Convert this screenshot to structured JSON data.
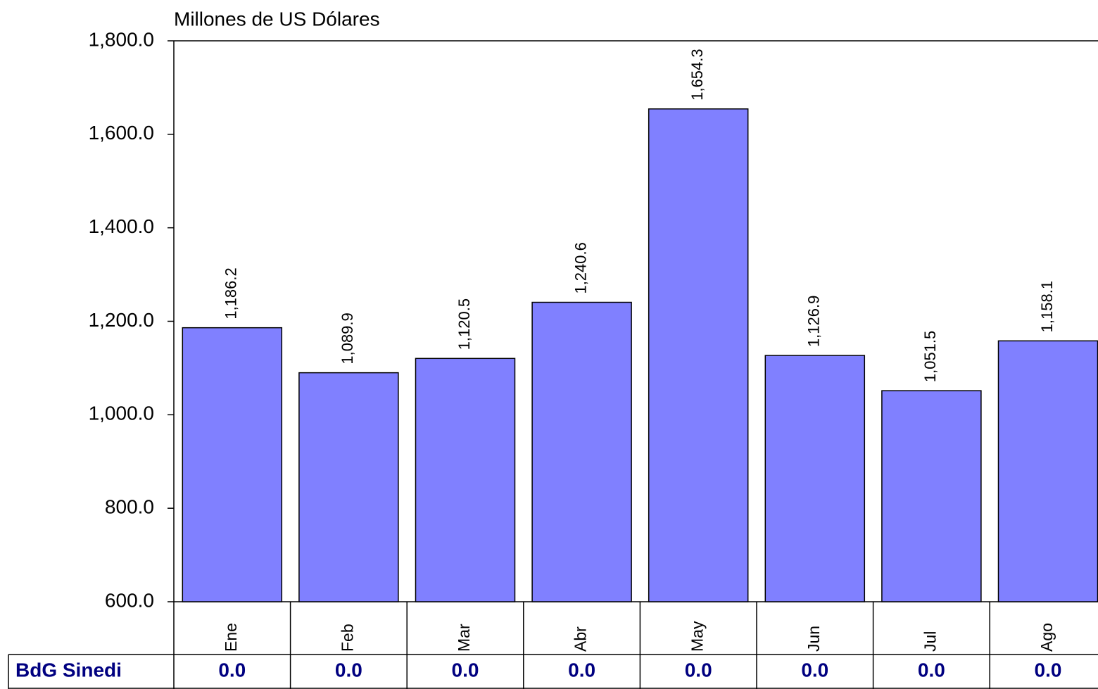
{
  "chart_data": {
    "type": "bar",
    "y_label": "Millones de US Dólares",
    "categories": [
      "Ene",
      "Feb",
      "Mar",
      "Abr",
      "May",
      "Jun",
      "Jul",
      "Ago"
    ],
    "values": [
      1186.2,
      1089.9,
      1120.5,
      1240.6,
      1654.3,
      1126.9,
      1051.5,
      1158.1
    ],
    "value_labels": [
      "1,186.2",
      "1,089.9",
      "1,120.5",
      "1,240.6",
      "1,654.3",
      "1,126.9",
      "1,051.5",
      "1,158.1"
    ],
    "color": "#8080ff",
    "ylim": [
      600,
      1800
    ],
    "yticks": [
      {
        "value": 600,
        "label": "600.0"
      },
      {
        "value": 800,
        "label": "800.0"
      },
      {
        "value": 1000,
        "label": "1,000.0"
      },
      {
        "value": 1200,
        "label": "1,200.0"
      },
      {
        "value": 1400,
        "label": "1,400.0"
      },
      {
        "value": 1600,
        "label": "1,600.0"
      },
      {
        "value": 1800,
        "label": "1,800.0"
      }
    ],
    "table": {
      "name": "BdG Sinedi",
      "values": [
        0,
        0,
        0,
        0,
        0,
        0,
        0,
        0
      ],
      "value_labels": [
        "0.0",
        "0.0",
        "0.0",
        "0.0",
        "0.0",
        "0.0",
        "0.0",
        "0.0"
      ]
    }
  }
}
